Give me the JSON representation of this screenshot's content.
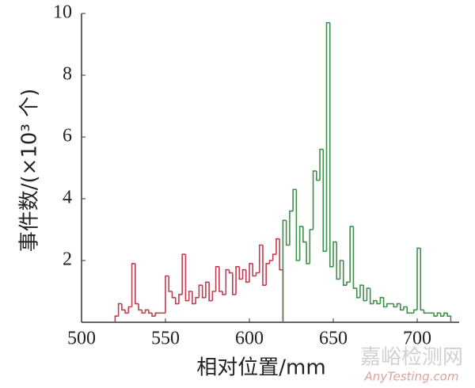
{
  "chart_data": {
    "type": "histogram",
    "xlabel": "相对位置/mm",
    "ylabel": "事件数/(×10³ 个)",
    "xlim": [
      500,
      725
    ],
    "ylim": [
      0,
      10
    ],
    "xticks": [
      500,
      550,
      600,
      650,
      700
    ],
    "yticks": [
      2,
      4,
      6,
      8,
      10
    ],
    "series": [
      {
        "color": "#c23b4e",
        "bins": [
          520,
          522,
          524,
          526,
          528,
          530,
          532,
          534,
          536,
          538,
          540,
          542,
          544,
          546,
          548,
          550,
          552,
          554,
          556,
          558,
          560,
          562,
          564,
          566,
          568,
          570,
          572,
          574,
          576,
          578,
          580,
          582,
          584,
          586,
          588,
          590,
          592,
          594,
          596,
          598,
          600,
          602,
          604,
          606,
          608,
          610,
          612,
          614,
          616,
          618,
          620
        ],
        "values": [
          0.2,
          0.6,
          0.4,
          0.3,
          0.5,
          1.9,
          0.6,
          0.4,
          0.3,
          0.4,
          0.3,
          0.2,
          0.3,
          0.3,
          0.3,
          1.5,
          1.0,
          0.8,
          0.6,
          0.9,
          2.2,
          0.7,
          1.0,
          0.6,
          0.8,
          1.2,
          0.8,
          1.3,
          0.7,
          1.0,
          1.8,
          1.0,
          0.9,
          1.7,
          1.6,
          0.9,
          1.8,
          1.4,
          1.7,
          1.3,
          1.9,
          1.5,
          1.6,
          2.5,
          1.2,
          1.9,
          2.0,
          2.2,
          2.7,
          1.7
        ]
      },
      {
        "color": "#3f8f4a",
        "bins": [
          620,
          622,
          624,
          626,
          628,
          630,
          632,
          634,
          636,
          638,
          640,
          642,
          644,
          646,
          648,
          650,
          652,
          654,
          656,
          658,
          660,
          662,
          664,
          666,
          668,
          670,
          672,
          674,
          676,
          678,
          680,
          682,
          684,
          686,
          688,
          690,
          692,
          694,
          696,
          698,
          700,
          702,
          704,
          706,
          708,
          710,
          712,
          714,
          716,
          718,
          720
        ],
        "values": [
          3.3,
          2.5,
          3.6,
          4.3,
          2.0,
          3.1,
          2.6,
          1.9,
          3.0,
          4.9,
          4.6,
          5.6,
          2.3,
          9.7,
          1.8,
          2.6,
          1.4,
          2.0,
          1.2,
          1.3,
          3.1,
          1.1,
          0.8,
          1.2,
          0.7,
          1.1,
          0.6,
          0.7,
          0.6,
          0.8,
          0.5,
          0.6,
          0.6,
          0.5,
          0.6,
          0.4,
          0.5,
          0.3,
          0.3,
          0.4,
          2.4,
          0.4,
          0.3,
          0.3,
          0.3,
          0.2,
          0.3,
          0.2,
          0.3,
          0.2
        ]
      }
    ]
  },
  "watermark": {
    "title": "嘉峪检测网",
    "url": "AnyTesting.com"
  }
}
